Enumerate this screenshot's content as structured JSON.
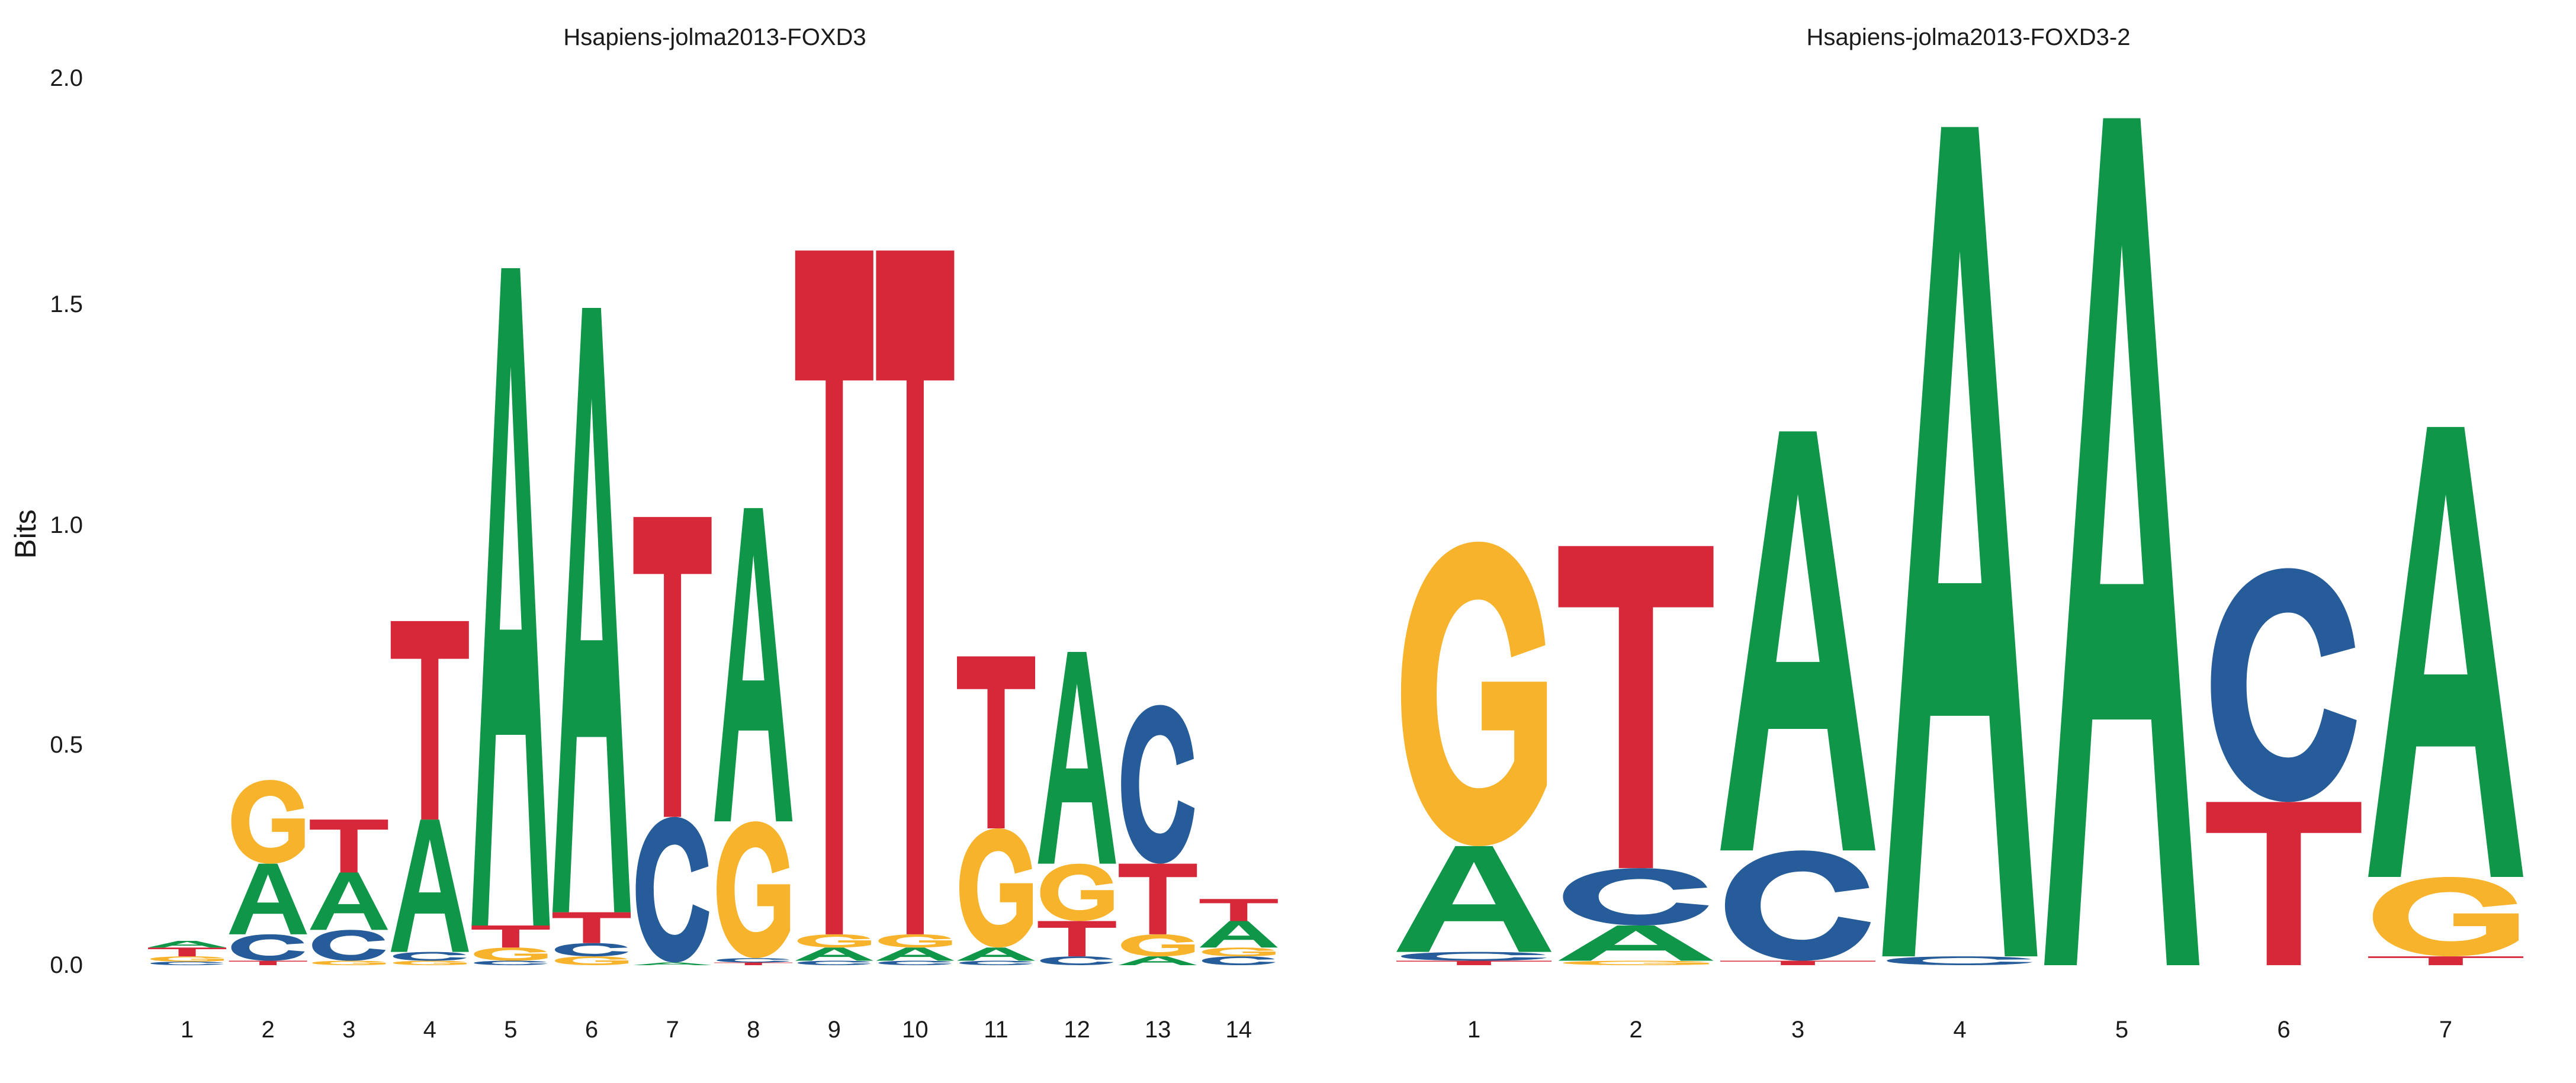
{
  "colors": {
    "A": "#109648",
    "C": "#255c99",
    "G": "#f7b32b",
    "T": "#d62839"
  },
  "chart_data": {
    "type": "sequence-logo",
    "ylabel": "Bits",
    "ylim": [
      0,
      2.0
    ],
    "yticks": [
      "0.0",
      "0.5",
      "1.0",
      "1.5",
      "2.0"
    ],
    "panels": [
      {
        "title": "Hsapiens-jolma2013-FOXD3",
        "x": [
          1,
          2,
          3,
          4,
          5,
          6,
          7,
          8,
          9,
          10,
          11,
          12,
          13,
          14
        ],
        "stacks": [
          [
            [
              "C",
              0.008
            ],
            [
              "G",
              0.012
            ],
            [
              "T",
              0.02
            ],
            [
              "A",
              0.015
            ]
          ],
          [
            [
              "T",
              0.01
            ],
            [
              "C",
              0.06
            ],
            [
              "A",
              0.16
            ],
            [
              "G",
              0.19
            ]
          ],
          [
            [
              "G",
              0.01
            ],
            [
              "C",
              0.07
            ],
            [
              "A",
              0.13
            ],
            [
              "T",
              0.12
            ]
          ],
          [
            [
              "G",
              0.01
            ],
            [
              "C",
              0.02
            ],
            [
              "A",
              0.3
            ],
            [
              "T",
              0.45
            ]
          ],
          [
            [
              "C",
              0.01
            ],
            [
              "G",
              0.03
            ],
            [
              "T",
              0.05
            ],
            [
              "A",
              1.49
            ]
          ],
          [
            [
              "G",
              0.02
            ],
            [
              "C",
              0.03
            ],
            [
              "T",
              0.07
            ],
            [
              "A",
              1.37
            ]
          ],
          [
            [
              "A",
              0.006
            ],
            [
              "C",
              0.33
            ],
            [
              "T",
              0.68
            ]
          ],
          [
            [
              "T",
              0.006
            ],
            [
              "C",
              0.01
            ],
            [
              "G",
              0.31
            ],
            [
              "A",
              0.71
            ]
          ],
          [
            [
              "C",
              0.01
            ],
            [
              "A",
              0.03
            ],
            [
              "G",
              0.03
            ],
            [
              "T",
              1.55
            ]
          ],
          [
            [
              "C",
              0.01
            ],
            [
              "A",
              0.03
            ],
            [
              "G",
              0.03
            ],
            [
              "T",
              1.55
            ]
          ],
          [
            [
              "C",
              0.01
            ],
            [
              "A",
              0.03
            ],
            [
              "G",
              0.27
            ],
            [
              "T",
              0.39
            ]
          ],
          [
            [
              "C",
              0.02
            ],
            [
              "T",
              0.08
            ],
            [
              "G",
              0.13
            ],
            [
              "A",
              0.48
            ]
          ],
          [
            [
              "A",
              0.02
            ],
            [
              "G",
              0.05
            ],
            [
              "T",
              0.16
            ],
            [
              "C",
              0.36
            ]
          ],
          [
            [
              "C",
              0.02
            ],
            [
              "G",
              0.02
            ],
            [
              "A",
              0.06
            ],
            [
              "T",
              0.05
            ]
          ]
        ]
      },
      {
        "title": "Hsapiens-jolma2013-FOXD3-2",
        "x": [
          1,
          2,
          3,
          4,
          5,
          6,
          7
        ],
        "stacks": [
          [
            [
              "T",
              0.01
            ],
            [
              "C",
              0.02
            ],
            [
              "A",
              0.24
            ],
            [
              "G",
              0.69
            ]
          ],
          [
            [
              "G",
              0.01
            ],
            [
              "A",
              0.08
            ],
            [
              "C",
              0.13
            ],
            [
              "T",
              0.73
            ]
          ],
          [
            [
              "T",
              0.01
            ],
            [
              "C",
              0.25
            ],
            [
              "A",
              0.95
            ]
          ],
          [
            [
              "C",
              0.02
            ],
            [
              "A",
              1.88
            ]
          ],
          [
            [
              "A",
              1.92
            ]
          ],
          [
            [
              "T",
              0.37
            ],
            [
              "C",
              0.53
            ]
          ],
          [
            [
              "T",
              0.02
            ],
            [
              "G",
              0.18
            ],
            [
              "A",
              1.02
            ]
          ]
        ]
      }
    ]
  }
}
